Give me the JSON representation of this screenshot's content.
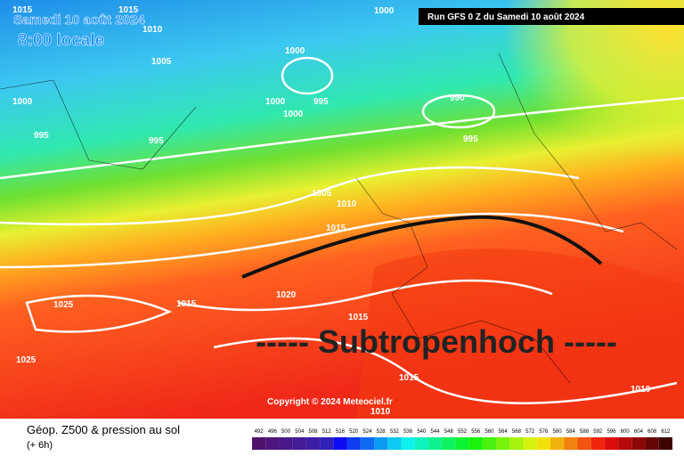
{
  "header": {
    "date": "Samedi 10 août 2024",
    "time": "8:00 locale",
    "run": "Run GFS 0 Z du Samedi 10 août 2024"
  },
  "annotation": "----- Subtropenhoch -----",
  "copyright": "Copyright © 2024 Meteociel.fr",
  "isobar_labels": [
    "1015",
    "1015",
    "1010",
    "1000",
    "1005",
    "1000",
    "1000",
    "995",
    "1000",
    "1000",
    "995",
    "995",
    "990",
    "995",
    "1005",
    "1010",
    "1015",
    "1020",
    "1015",
    "1025",
    "1015",
    "1025",
    "1015",
    "1010",
    "1010"
  ],
  "footer": {
    "title": "Géop. Z500 & pression au sol",
    "step": "(+ 6h)"
  },
  "colorbar": {
    "labels": [
      "492",
      "496",
      "500",
      "504",
      "508",
      "512",
      "516",
      "520",
      "524",
      "528",
      "532",
      "536",
      "540",
      "544",
      "548",
      "552",
      "556",
      "560",
      "564",
      "568",
      "572",
      "576",
      "580",
      "584",
      "588",
      "592",
      "596",
      "600",
      "604",
      "608",
      "612"
    ]
  }
}
